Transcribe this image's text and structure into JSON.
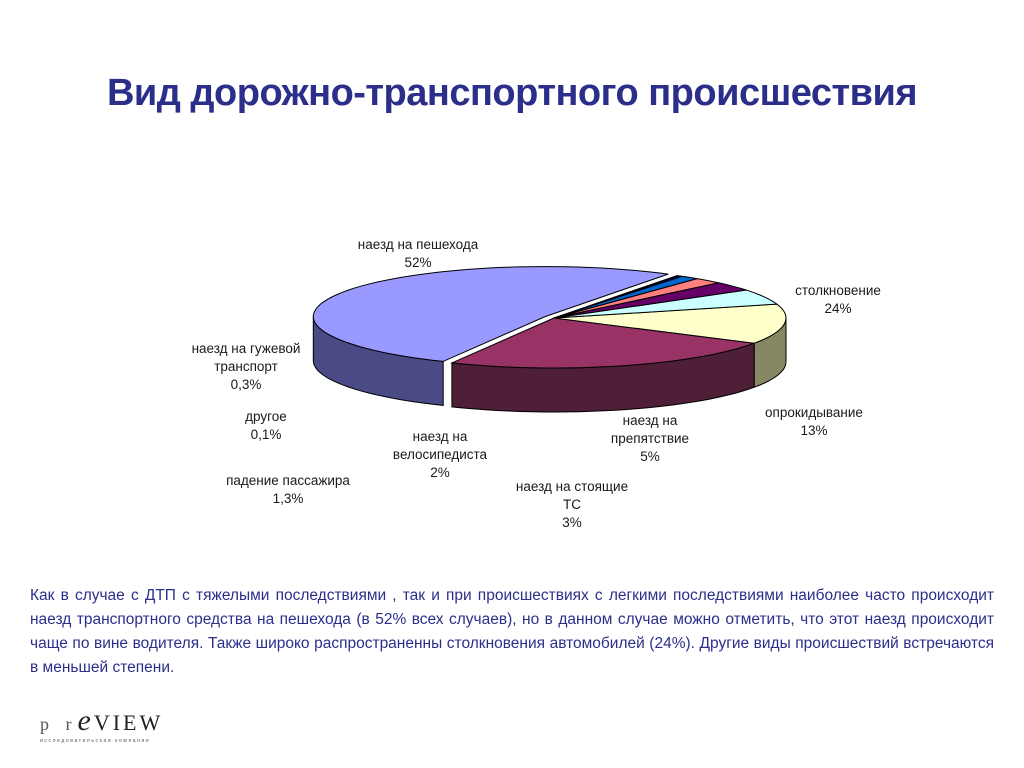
{
  "title": "Вид дорожно-транспортного происшествия",
  "description": "Как в случае с ДТП с тяжелыми последствиями , так и  при происшествиях с легкими  последствиями  наиболее часто происходит наезд транспортного средства на пешехода (в 52% всех случаев), но в данном случае можно отметить, что этот наезд происходит чаще по вине водителя. Также широко распространенны столкновения автомобилей (24%). Другие виды происшествий встречаются в меньшей степени.",
  "logo": {
    "p": "p r",
    "e": "e",
    "view": "VIEW",
    "tagline": "исследовательская компания"
  },
  "chart_data": {
    "type": "pie",
    "title": "",
    "style": "3d-exploded",
    "slices": [
      {
        "label_lines": [
          "наезд на пешехода",
          "52%"
        ],
        "value": 52,
        "top": "#9999ff",
        "side": "#4a4a86"
      },
      {
        "label_lines": [
          "столкновение",
          "24%"
        ],
        "value": 24,
        "top": "#993366",
        "side": "#4e1f37"
      },
      {
        "label_lines": [
          "опрокидывание",
          "13%"
        ],
        "value": 13,
        "top": "#ffffcc",
        "side": "#878764"
      },
      {
        "label_lines": [
          "наезд на",
          "препятствие",
          "5%"
        ],
        "value": 5,
        "top": "#ccffff",
        "side": "#668080"
      },
      {
        "label_lines": [
          "наезд на стоящие",
          "ТС",
          "3%"
        ],
        "value": 3,
        "top": "#660066",
        "side": "#330033"
      },
      {
        "label_lines": [
          "наезд на",
          "велосипедиста",
          "2%"
        ],
        "value": 2,
        "top": "#ff8080",
        "side": "#8a4a4a"
      },
      {
        "label_lines": [
          "падение пассажира",
          "1,3%"
        ],
        "value": 1.3,
        "top": "#0066cc",
        "side": "#003b77"
      },
      {
        "label_lines": [
          "другое",
          "0,1%"
        ],
        "value": 0.1,
        "top": "#ccccff",
        "side": "#6b6b99"
      },
      {
        "label_lines": [
          "наезд на гужевой",
          "транспорт",
          "0,3%"
        ],
        "value": 0.3,
        "top": "#000080",
        "side": "#000045"
      }
    ]
  }
}
